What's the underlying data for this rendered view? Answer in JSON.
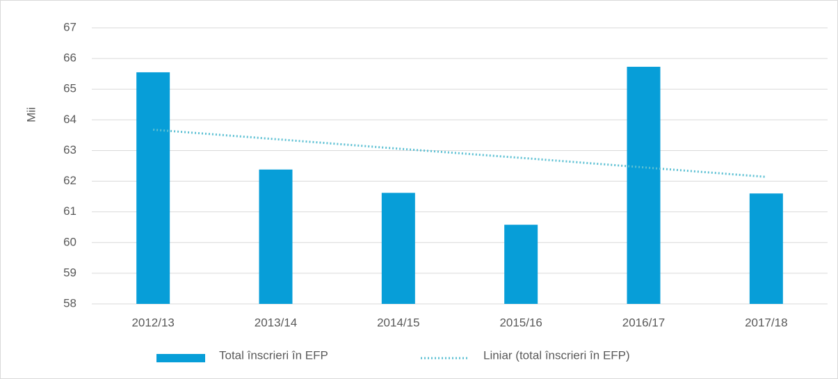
{
  "chart_data": {
    "type": "bar",
    "categories": [
      "2012/13",
      "2013/14",
      "2014/15",
      "2015/16",
      "2016/17",
      "2017/18"
    ],
    "series": [
      {
        "name": "Total înscrieri în EFP",
        "type": "bar",
        "color": "#079ed8",
        "values": [
          65.55,
          62.38,
          61.62,
          60.58,
          65.73,
          61.6
        ]
      },
      {
        "name": "Liniar (total înscrieri în EFP)",
        "type": "line",
        "dash": "dotted",
        "color": "#5cc0d3",
        "values": [
          63.68,
          63.37,
          63.06,
          62.76,
          62.45,
          62.14
        ]
      }
    ],
    "ylabel": "Mii",
    "ylim": [
      58,
      67
    ],
    "yticks": [
      58,
      59,
      60,
      61,
      62,
      63,
      64,
      65,
      66,
      67
    ],
    "grid": true,
    "legend": "bottom"
  }
}
